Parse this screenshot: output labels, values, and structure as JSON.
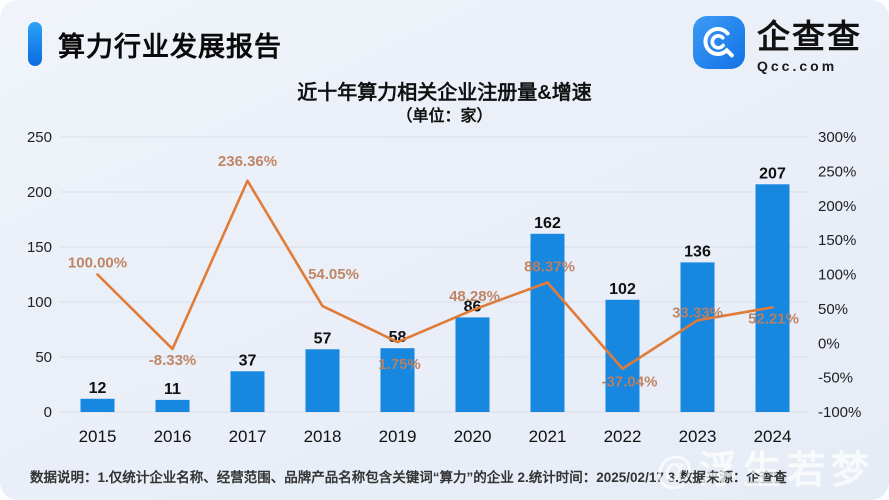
{
  "header": {
    "title": "算力行业发展报告"
  },
  "logo": {
    "name": "企查查",
    "domain": "Qcc.com"
  },
  "chart_data": {
    "type": "combo",
    "title": "近十年算力相关企业注册量&增速",
    "subtitle": "（单位：家）",
    "categories": [
      "2015",
      "2016",
      "2017",
      "2018",
      "2019",
      "2020",
      "2021",
      "2022",
      "2023",
      "2024"
    ],
    "series": [
      {
        "name": "注册量",
        "type": "bar",
        "values": [
          12,
          11,
          37,
          57,
          58,
          86,
          162,
          102,
          136,
          207
        ],
        "color": "#1787e0",
        "value_label_color": "#111111"
      },
      {
        "name": "增速",
        "type": "line",
        "values": [
          100.0,
          -8.33,
          236.36,
          54.05,
          1.75,
          48.28,
          88.37,
          -37.04,
          33.33,
          52.21
        ],
        "labels": [
          "100.00%",
          "-8.33%",
          "236.36%",
          "54.05%",
          "1.75%",
          "48.28%",
          "88.37%",
          "-37.04%",
          "33.33%",
          "52.21%"
        ],
        "color": "#e07b38",
        "label_color": "#bd7f5e"
      }
    ],
    "y_left": {
      "min": 0,
      "max": 250,
      "ticks": [
        0,
        50,
        100,
        150,
        200,
        250
      ]
    },
    "y_right": {
      "min": -100,
      "max": 300,
      "tick_values": [
        -100,
        -50,
        0,
        50,
        100,
        150,
        200,
        250,
        300
      ],
      "tick_labels": [
        "-100%",
        "-50%",
        "0%",
        "50%",
        "100%",
        "150%",
        "200%",
        "250%",
        "300%"
      ]
    },
    "grid": true,
    "legend_position": "none",
    "axis_label_color": "#222222",
    "grid_color": "#d9dfea"
  },
  "footer": {
    "notes": "数据说明：1.仅统计企业名称、经营范围、品牌产品名称包含关键词“算力”的企业  2.统计时间：2025/02/17  3.数据来源：企查查"
  },
  "watermark": {
    "text": "@浮生若梦"
  }
}
